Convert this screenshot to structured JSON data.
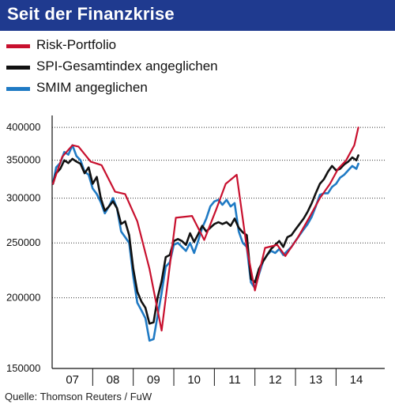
{
  "header": {
    "title": "Seit der Finanzkrise"
  },
  "legend": [
    {
      "label": "Risk-Portfolio",
      "color": "#c8102e"
    },
    {
      "label": "SPI-Gesamtindex angeglichen",
      "color": "#111111"
    },
    {
      "label": "SMIM angeglichen",
      "color": "#1f7ac4"
    }
  ],
  "source": "Quelle: Thomson Reuters / FuW",
  "colors": {
    "title_bar": "#1f3a8f",
    "risk": "#c8102e",
    "spi": "#111111",
    "smim": "#1f7ac4"
  },
  "chart_data": {
    "type": "line",
    "y_scale": "log",
    "ylim": [
      150000,
      420000
    ],
    "xlim": [
      2006.5,
      2014.7
    ],
    "yticks": [
      150000,
      200000,
      250000,
      300000,
      350000,
      400000
    ],
    "ytick_labels": [
      "150000",
      "200000",
      "250000",
      "300000",
      "350000",
      "400000"
    ],
    "xtick_labels": [
      "07",
      "08",
      "09",
      "10",
      "11",
      "12",
      "13",
      "14"
    ],
    "xtick_centers": [
      2007.0,
      2008.0,
      2009.0,
      2010.0,
      2011.0,
      2012.0,
      2013.0,
      2014.0
    ],
    "grid": "horizontal-dotted",
    "series": [
      {
        "name": "Risk-Portfolio",
        "color": "#c8102e",
        "x": [
          2006.52,
          2006.75,
          2007.0,
          2007.15,
          2007.45,
          2007.72,
          2008.05,
          2008.3,
          2008.6,
          2008.9,
          2009.2,
          2009.55,
          2009.95,
          2010.25,
          2010.55,
          2010.78,
          2011.05,
          2011.3,
          2011.5,
          2011.75,
          2011.95,
          2012.05,
          2012.25,
          2012.55,
          2012.85,
          2013.1,
          2013.35,
          2013.55,
          2013.75,
          2013.95,
          2014.05
        ],
        "y": [
          318000,
          355000,
          372000,
          370000,
          348000,
          343000,
          308000,
          305000,
          273000,
          225000,
          175000,
          277000,
          279000,
          253000,
          287000,
          318000,
          330000,
          245000,
          206000,
          245000,
          247000,
          248000,
          237000,
          255000,
          278000,
          300000,
          318000,
          338000,
          350000,
          372000,
          400000
        ]
      },
      {
        "name": "SPI-Gesamtindex angeglichen",
        "color": "#111111",
        "x": [
          2006.52,
          2006.6,
          2006.7,
          2006.8,
          2006.9,
          2007.0,
          2007.1,
          2007.2,
          2007.3,
          2007.4,
          2007.5,
          2007.6,
          2007.7,
          2007.8,
          2007.9,
          2008.0,
          2008.1,
          2008.2,
          2008.3,
          2008.4,
          2008.5,
          2008.6,
          2008.7,
          2008.8,
          2008.9,
          2009.0,
          2009.1,
          2009.2,
          2009.3,
          2009.4,
          2009.5,
          2009.6,
          2009.7,
          2009.8,
          2009.9,
          2010.0,
          2010.1,
          2010.2,
          2010.3,
          2010.4,
          2010.5,
          2010.6,
          2010.7,
          2010.8,
          2010.9,
          2011.0,
          2011.1,
          2011.2,
          2011.3,
          2011.4,
          2011.5,
          2011.6,
          2011.7,
          2011.8,
          2011.9,
          2012.0,
          2012.1,
          2012.2,
          2012.3,
          2012.4,
          2012.5,
          2012.6,
          2012.7,
          2012.8,
          2012.9,
          2013.0,
          2013.1,
          2013.2,
          2013.3,
          2013.4,
          2013.5,
          2013.6,
          2013.7,
          2013.8,
          2013.9,
          2014.0,
          2014.05
        ],
        "y": [
          318000,
          332000,
          338000,
          350000,
          346000,
          352000,
          348000,
          345000,
          332000,
          340000,
          318000,
          327000,
          300000,
          285000,
          290000,
          296000,
          288000,
          270000,
          273000,
          258000,
          225000,
          205000,
          197000,
          192000,
          180000,
          181000,
          200000,
          214000,
          236000,
          238000,
          252000,
          254000,
          252000,
          248000,
          260000,
          251000,
          259000,
          268000,
          262000,
          266000,
          270000,
          272000,
          270000,
          272000,
          268000,
          276000,
          266000,
          261000,
          258000,
          216000,
          213000,
          225000,
          232000,
          238000,
          244000,
          248000,
          252000,
          246000,
          256000,
          258000,
          264000,
          270000,
          276000,
          284000,
          294000,
          306000,
          318000,
          324000,
          334000,
          342000,
          336000,
          338000,
          344000,
          348000,
          354000,
          350000,
          357000
        ]
      },
      {
        "name": "SMIM angeglichen",
        "color": "#1f7ac4",
        "x": [
          2006.52,
          2006.6,
          2006.7,
          2006.8,
          2006.9,
          2007.0,
          2007.1,
          2007.2,
          2007.3,
          2007.4,
          2007.5,
          2007.6,
          2007.7,
          2007.8,
          2007.9,
          2008.0,
          2008.1,
          2008.2,
          2008.3,
          2008.4,
          2008.5,
          2008.6,
          2008.7,
          2008.8,
          2008.9,
          2009.0,
          2009.1,
          2009.2,
          2009.3,
          2009.4,
          2009.5,
          2009.6,
          2009.7,
          2009.8,
          2009.9,
          2010.0,
          2010.1,
          2010.2,
          2010.3,
          2010.4,
          2010.5,
          2010.6,
          2010.7,
          2010.8,
          2010.9,
          2011.0,
          2011.1,
          2011.2,
          2011.3,
          2011.4,
          2011.5,
          2011.6,
          2011.7,
          2011.8,
          2011.9,
          2012.0,
          2012.1,
          2012.2,
          2012.3,
          2012.4,
          2012.5,
          2012.6,
          2012.7,
          2012.8,
          2012.9,
          2013.0,
          2013.1,
          2013.2,
          2013.3,
          2013.4,
          2013.5,
          2013.6,
          2013.7,
          2013.8,
          2013.9,
          2014.0,
          2014.05
        ],
        "y": [
          318000,
          340000,
          346000,
          362000,
          358000,
          372000,
          356000,
          350000,
          334000,
          330000,
          312000,
          305000,
          295000,
          282000,
          290000,
          300000,
          288000,
          262000,
          256000,
          250000,
          218000,
          196000,
          190000,
          184000,
          168000,
          169000,
          186000,
          204000,
          227000,
          231000,
          248000,
          250000,
          246000,
          242000,
          250000,
          240000,
          252000,
          266000,
          276000,
          290000,
          296000,
          298000,
          292000,
          298000,
          290000,
          294000,
          262000,
          250000,
          246000,
          213000,
          208000,
          220000,
          232000,
          238000,
          242000,
          240000,
          244000,
          238000,
          242000,
          246000,
          252000,
          258000,
          264000,
          270000,
          278000,
          290000,
          304000,
          306000,
          306000,
          314000,
          318000,
          326000,
          330000,
          336000,
          342000,
          338000,
          345000
        ]
      }
    ]
  }
}
